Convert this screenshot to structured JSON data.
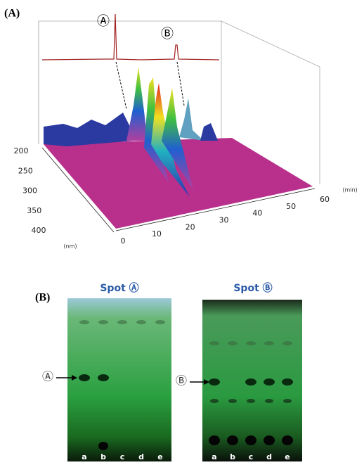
{
  "panel_a": {
    "label": "(A)",
    "peak_labels": [
      "Ⓐ",
      "Ⓑ"
    ],
    "wavelength_ticks": [
      200,
      250,
      300,
      350,
      400
    ],
    "wavelength_unit": "(nm)",
    "time_ticks": [
      0,
      10,
      20,
      30,
      40,
      50,
      60
    ],
    "time_unit": "(min)"
  },
  "panel_b": {
    "label": "(B)",
    "plates": [
      {
        "title": "Spot Ⓐ",
        "marker": "Ⓐ",
        "lanes": [
          "a",
          "b",
          "c",
          "d",
          "e"
        ]
      },
      {
        "title": "Spot Ⓑ",
        "marker": "Ⓑ",
        "lanes": [
          "a",
          "b",
          "c",
          "d",
          "e"
        ]
      }
    ]
  }
}
